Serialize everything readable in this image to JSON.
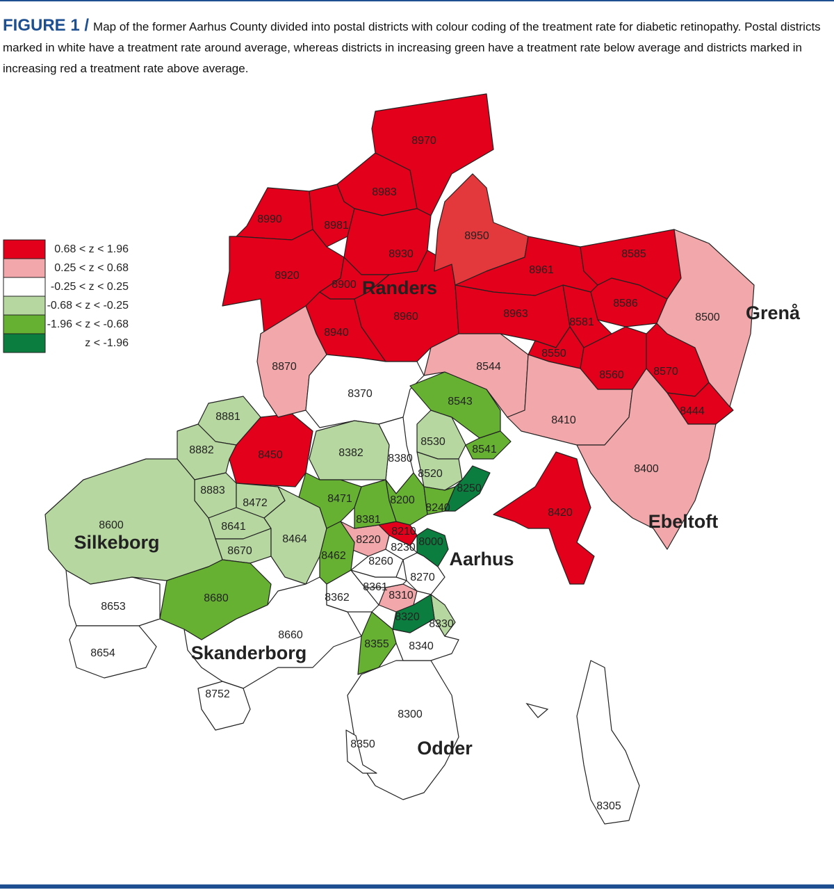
{
  "figure": {
    "label": "FIGURE 1 /",
    "caption": "Map of the former Aarhus County divided into postal districts with colour coding of the treatment rate for diabetic retinopathy. Postal districts marked in white have a treatment rate around average, whereas districts in increasing green have a treatment rate below average and districts marked in increasing red a treatment rate above average."
  },
  "legend": [
    {
      "label": "0.68 < z < 1.96",
      "color": "#e2001a"
    },
    {
      "label": "0.25 < z < 0.68",
      "color": "#f2a7aa"
    },
    {
      "label": "-0.25 < z < 0.25",
      "color": "#ffffff"
    },
    {
      "label": "-0.68 < z < -0.25",
      "color": "#b6d7a0"
    },
    {
      "label": "-1.96 < z < -0.68",
      "color": "#66b132"
    },
    {
      "label": "z < -1.96",
      "color": "#0b7d3e"
    }
  ],
  "districts": [
    {
      "code": "8970",
      "color": "#e2001a"
    },
    {
      "code": "8983",
      "color": "#e2001a"
    },
    {
      "code": "8990",
      "color": "#e2001a"
    },
    {
      "code": "8981",
      "color": "#e2001a"
    },
    {
      "code": "8930",
      "color": "#e2001a"
    },
    {
      "code": "8920",
      "color": "#e2001a"
    },
    {
      "code": "8900",
      "color": "#e2001a"
    },
    {
      "code": "8940",
      "color": "#e2001a"
    },
    {
      "code": "8960",
      "color": "#e2001a"
    },
    {
      "code": "8950",
      "color": "#e3383c"
    },
    {
      "code": "8961",
      "color": "#e2001a"
    },
    {
      "code": "8585",
      "color": "#e2001a"
    },
    {
      "code": "8963",
      "color": "#e2001a"
    },
    {
      "code": "8586",
      "color": "#e2001a"
    },
    {
      "code": "8581",
      "color": "#e2001a"
    },
    {
      "code": "8550",
      "color": "#e2001a"
    },
    {
      "code": "8560",
      "color": "#e2001a"
    },
    {
      "code": "8570",
      "color": "#e2001a"
    },
    {
      "code": "8444",
      "color": "#e2001a"
    },
    {
      "code": "8450",
      "color": "#e2001a"
    },
    {
      "code": "8420",
      "color": "#e2001a"
    },
    {
      "code": "8210",
      "color": "#e2001a"
    },
    {
      "code": "8500",
      "color": "#f2a7aa"
    },
    {
      "code": "8544",
      "color": "#f2a7aa"
    },
    {
      "code": "8870",
      "color": "#f2a7aa"
    },
    {
      "code": "8410",
      "color": "#f2a7aa"
    },
    {
      "code": "8400",
      "color": "#f2a7aa"
    },
    {
      "code": "8220",
      "color": "#f2a7aa"
    },
    {
      "code": "8310",
      "color": "#f2a7aa"
    },
    {
      "code": "8370",
      "color": "#ffffff"
    },
    {
      "code": "8653",
      "color": "#ffffff"
    },
    {
      "code": "8654",
      "color": "#ffffff"
    },
    {
      "code": "8660",
      "color": "#ffffff"
    },
    {
      "code": "8752",
      "color": "#ffffff"
    },
    {
      "code": "8300",
      "color": "#ffffff"
    },
    {
      "code": "8350",
      "color": "#ffffff"
    },
    {
      "code": "8305",
      "color": "#ffffff"
    },
    {
      "code": "8362",
      "color": "#ffffff"
    },
    {
      "code": "8361",
      "color": "#ffffff"
    },
    {
      "code": "8270",
      "color": "#ffffff"
    },
    {
      "code": "8340",
      "color": "#ffffff"
    },
    {
      "code": "8260",
      "color": "#ffffff"
    },
    {
      "code": "8230",
      "color": "#ffffff"
    },
    {
      "code": "8380",
      "color": "#ffffff"
    },
    {
      "code": "8881",
      "color": "#b6d7a0"
    },
    {
      "code": "8882",
      "color": "#b6d7a0"
    },
    {
      "code": "8883",
      "color": "#b6d7a0"
    },
    {
      "code": "8472",
      "color": "#b6d7a0"
    },
    {
      "code": "8641",
      "color": "#b6d7a0"
    },
    {
      "code": "8670",
      "color": "#b6d7a0"
    },
    {
      "code": "8600",
      "color": "#b6d7a0"
    },
    {
      "code": "8382",
      "color": "#b6d7a0"
    },
    {
      "code": "8530",
      "color": "#b6d7a0"
    },
    {
      "code": "8520",
      "color": "#b6d7a0"
    },
    {
      "code": "8464",
      "color": "#b6d7a0"
    },
    {
      "code": "8330",
      "color": "#b6d7a0"
    },
    {
      "code": "8543",
      "color": "#66b132"
    },
    {
      "code": "8541",
      "color": "#66b132"
    },
    {
      "code": "8471",
      "color": "#66b132"
    },
    {
      "code": "8200",
      "color": "#66b132"
    },
    {
      "code": "8240",
      "color": "#66b132"
    },
    {
      "code": "8381",
      "color": "#66b132"
    },
    {
      "code": "8462",
      "color": "#66b132"
    },
    {
      "code": "8680",
      "color": "#66b132"
    },
    {
      "code": "8355",
      "color": "#66b132"
    },
    {
      "code": "8250",
      "color": "#0b7d3e"
    },
    {
      "code": "8000",
      "color": "#0b7d3e"
    },
    {
      "code": "8320",
      "color": "#0b7d3e"
    }
  ],
  "towns": [
    "Randers",
    "Grenå",
    "Ebeltoft",
    "Silkeborg",
    "Aarhus",
    "Skanderborg",
    "Odder"
  ]
}
